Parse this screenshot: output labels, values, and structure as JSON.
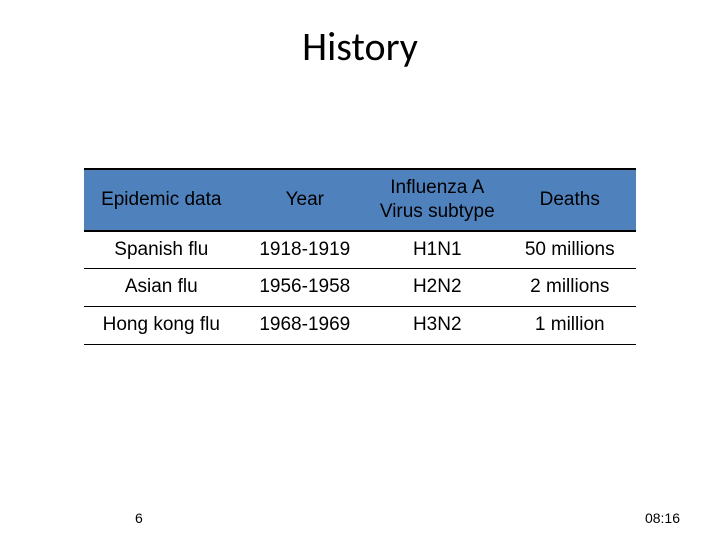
{
  "slide": {
    "title": "History",
    "page_number": "6",
    "timestamp": "08:16",
    "background_color": "#ffffff",
    "title_color": "#000000",
    "title_fontsize": 40
  },
  "table": {
    "header_bg": "#4f81bd",
    "border_color": "#000000",
    "header_fontsize": 19,
    "cell_fontsize": 19,
    "col_widths_pct": [
      28,
      24,
      24,
      24
    ],
    "columns": [
      "Epidemic data",
      "Year",
      "Influenza A Virus subtype",
      "Deaths"
    ],
    "rows": [
      [
        "Spanish flu",
        "1918-1919",
        "H1N1",
        "50 millions"
      ],
      [
        "Asian flu",
        "1956-1958",
        "H2N2",
        "2 millions"
      ],
      [
        "Hong kong flu",
        "1968-1969",
        "H3N2",
        "1 million"
      ]
    ]
  }
}
